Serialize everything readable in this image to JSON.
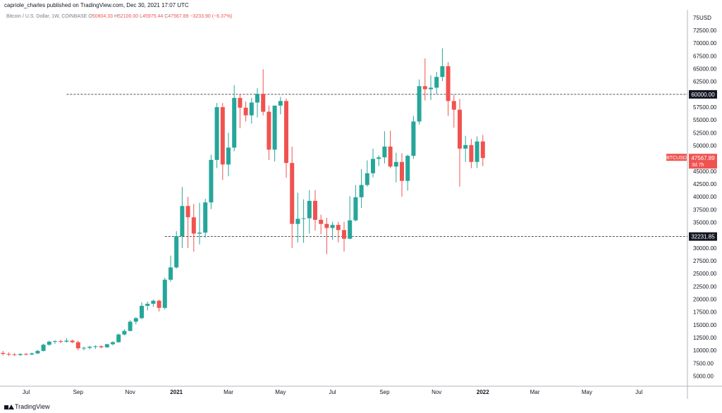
{
  "header": {
    "published": "capriole_charles published on TradingView.com, Dec 30, 2021 17:07 UTC"
  },
  "legend": {
    "symbol": "Bitcoin / U.S. Dollar, 1W, COINBASE",
    "open_label": "O",
    "open": "50804.33",
    "high_label": "H",
    "high": "52100.00",
    "low_label": "L",
    "low": "45975.44",
    "close_label": "C",
    "close": "47567.89",
    "change": "−3233.90 (−6.37%)"
  },
  "footer": {
    "brand": "TradingView"
  },
  "colors": {
    "up": "#26a69a",
    "down": "#ef5350",
    "level": "#131722",
    "axis_text": "#131722",
    "grid_text": "#787b86"
  },
  "chart_data": {
    "type": "candlestick",
    "title": "Bitcoin / U.S. Dollar, 1W, COINBASE",
    "currency_label": "USD",
    "ylim": [
      3000,
      76500
    ],
    "y_ticks": [
      5000,
      7500,
      10000,
      12500,
      15000,
      17500,
      20000,
      22500,
      25000,
      27500,
      30000,
      32500,
      35000,
      37500,
      40000,
      42500,
      45000,
      47500,
      50000,
      52500,
      55000,
      57500,
      60000,
      62500,
      65000,
      67500,
      70000,
      72500
    ],
    "y_tick_labels": [
      "5000.00",
      "7500.00",
      "10000.00",
      "12500.00",
      "15000.00",
      "17500.00",
      "20000.00",
      "22500.00",
      "25000.00",
      "27500.00",
      "30000.00",
      "32500.00",
      "35000.00",
      "37500.00",
      "40000.00",
      "42500.00",
      "45000.00",
      "47500.00",
      "50000.00",
      "52500.00",
      "55000.00",
      "57500.00",
      "60000.00",
      "62500.00",
      "65000.00",
      "67500.00",
      "70000.00",
      "72500.00"
    ],
    "y_top_label": "75",
    "x_labels": [
      {
        "label": "Jul",
        "week": 0,
        "bold": false
      },
      {
        "label": "Sep",
        "week": 9,
        "bold": false
      },
      {
        "label": "Nov",
        "week": 18,
        "bold": false
      },
      {
        "label": "2021",
        "week": 26,
        "bold": true
      },
      {
        "label": "Mar",
        "week": 35,
        "bold": false
      },
      {
        "label": "May",
        "week": 44,
        "bold": false
      },
      {
        "label": "Jul",
        "week": 53,
        "bold": false
      },
      {
        "label": "Sep",
        "week": 62,
        "bold": false
      },
      {
        "label": "Nov",
        "week": 71,
        "bold": false
      },
      {
        "label": "2022",
        "week": 79,
        "bold": true
      },
      {
        "label": "Mar",
        "week": 88,
        "bold": false
      },
      {
        "label": "May",
        "week": 97,
        "bold": false
      },
      {
        "label": "Jul",
        "week": 106,
        "bold": false
      }
    ],
    "first_week": -4,
    "levels": [
      {
        "value": 60000,
        "label": "60000.00",
        "from_week": 11
      },
      {
        "value": 32231.85,
        "label": "32231.85",
        "from_week": 28
      }
    ],
    "last_price": {
      "value": 47567.89,
      "label": "BTCUSD",
      "price": "47567.89",
      "countdown": "3d 7h"
    },
    "candles": [
      {
        "o": 9500,
        "h": 9900,
        "l": 9000,
        "c": 9300
      },
      {
        "o": 9300,
        "h": 9600,
        "l": 8900,
        "c": 9200
      },
      {
        "o": 9200,
        "h": 9450,
        "l": 8950,
        "c": 9100
      },
      {
        "o": 9100,
        "h": 9400,
        "l": 8900,
        "c": 9300
      },
      {
        "o": 9300,
        "h": 9500,
        "l": 9000,
        "c": 9200
      },
      {
        "o": 9200,
        "h": 9600,
        "l": 9050,
        "c": 9400
      },
      {
        "o": 9400,
        "h": 10100,
        "l": 9300,
        "c": 9900
      },
      {
        "o": 9900,
        "h": 11300,
        "l": 9800,
        "c": 11100
      },
      {
        "o": 11100,
        "h": 11900,
        "l": 10900,
        "c": 11700
      },
      {
        "o": 11700,
        "h": 12000,
        "l": 11300,
        "c": 11800
      },
      {
        "o": 11800,
        "h": 12100,
        "l": 11400,
        "c": 11700
      },
      {
        "o": 11700,
        "h": 12400,
        "l": 11500,
        "c": 11900
      },
      {
        "o": 11900,
        "h": 12100,
        "l": 11400,
        "c": 11600
      },
      {
        "o": 11600,
        "h": 11900,
        "l": 10000,
        "c": 10400
      },
      {
        "o": 10400,
        "h": 10700,
        "l": 10000,
        "c": 10500
      },
      {
        "o": 10500,
        "h": 10900,
        "l": 10200,
        "c": 10700
      },
      {
        "o": 10700,
        "h": 11000,
        "l": 10300,
        "c": 10800
      },
      {
        "o": 10800,
        "h": 11000,
        "l": 10400,
        "c": 10600
      },
      {
        "o": 10600,
        "h": 11300,
        "l": 10500,
        "c": 11200
      },
      {
        "o": 11200,
        "h": 11800,
        "l": 11000,
        "c": 11600
      },
      {
        "o": 11600,
        "h": 13300,
        "l": 11500,
        "c": 13100
      },
      {
        "o": 13100,
        "h": 14100,
        "l": 12900,
        "c": 13800
      },
      {
        "o": 13800,
        "h": 15900,
        "l": 13700,
        "c": 15600
      },
      {
        "o": 15600,
        "h": 16500,
        "l": 15100,
        "c": 16300
      },
      {
        "o": 16300,
        "h": 19400,
        "l": 16100,
        "c": 18700
      },
      {
        "o": 18700,
        "h": 19500,
        "l": 17800,
        "c": 19100
      },
      {
        "o": 19100,
        "h": 19900,
        "l": 18500,
        "c": 19700
      },
      {
        "o": 19700,
        "h": 19900,
        "l": 17600,
        "c": 18300
      },
      {
        "o": 18300,
        "h": 24200,
        "l": 18000,
        "c": 23800
      },
      {
        "o": 23800,
        "h": 28500,
        "l": 23400,
        "c": 26200
      },
      {
        "o": 26200,
        "h": 33300,
        "l": 26000,
        "c": 32300
      },
      {
        "o": 32300,
        "h": 41900,
        "l": 30000,
        "c": 38200
      },
      {
        "o": 38200,
        "h": 40000,
        "l": 30000,
        "c": 36000
      },
      {
        "o": 36000,
        "h": 38600,
        "l": 29300,
        "c": 32800
      },
      {
        "o": 32800,
        "h": 38800,
        "l": 30700,
        "c": 33000
      },
      {
        "o": 33000,
        "h": 39600,
        "l": 32000,
        "c": 38900
      },
      {
        "o": 38900,
        "h": 48200,
        "l": 37600,
        "c": 47200
      },
      {
        "o": 47200,
        "h": 58300,
        "l": 45600,
        "c": 57500
      },
      {
        "o": 57500,
        "h": 58300,
        "l": 43300,
        "c": 46300
      },
      {
        "o": 46300,
        "h": 52500,
        "l": 44000,
        "c": 49600
      },
      {
        "o": 49600,
        "h": 61800,
        "l": 48900,
        "c": 59300
      },
      {
        "o": 59300,
        "h": 60100,
        "l": 53400,
        "c": 57400
      },
      {
        "o": 57400,
        "h": 58600,
        "l": 54700,
        "c": 55900
      },
      {
        "o": 55900,
        "h": 59300,
        "l": 54300,
        "c": 58400
      },
      {
        "o": 58400,
        "h": 61200,
        "l": 55500,
        "c": 60100
      },
      {
        "o": 60100,
        "h": 64900,
        "l": 55900,
        "c": 56600
      },
      {
        "o": 56600,
        "h": 57800,
        "l": 47200,
        "c": 49200
      },
      {
        "o": 49200,
        "h": 57200,
        "l": 46900,
        "c": 57800
      },
      {
        "o": 57800,
        "h": 59500,
        "l": 56100,
        "c": 58700
      },
      {
        "o": 58700,
        "h": 59200,
        "l": 43700,
        "c": 46600
      },
      {
        "o": 46600,
        "h": 49800,
        "l": 30000,
        "c": 34700
      },
      {
        "o": 34700,
        "h": 40800,
        "l": 31100,
        "c": 35700
      },
      {
        "o": 35700,
        "h": 39500,
        "l": 31000,
        "c": 35800
      },
      {
        "o": 35800,
        "h": 41300,
        "l": 32800,
        "c": 39200
      },
      {
        "o": 39200,
        "h": 41300,
        "l": 33400,
        "c": 35500
      },
      {
        "o": 35500,
        "h": 36500,
        "l": 32700,
        "c": 34700
      },
      {
        "o": 34700,
        "h": 35900,
        "l": 28800,
        "c": 33900
      },
      {
        "o": 33900,
        "h": 35100,
        "l": 31600,
        "c": 34500
      },
      {
        "o": 34500,
        "h": 35100,
        "l": 31100,
        "c": 33500
      },
      {
        "o": 33500,
        "h": 35100,
        "l": 29300,
        "c": 31800
      },
      {
        "o": 31800,
        "h": 40100,
        "l": 31700,
        "c": 35400
      },
      {
        "o": 35400,
        "h": 42300,
        "l": 35200,
        "c": 39900
      },
      {
        "o": 39900,
        "h": 45400,
        "l": 37800,
        "c": 42300
      },
      {
        "o": 42300,
        "h": 47100,
        "l": 42000,
        "c": 44600
      },
      {
        "o": 44600,
        "h": 49400,
        "l": 43800,
        "c": 47400
      },
      {
        "o": 47400,
        "h": 48100,
        "l": 46000,
        "c": 47700
      },
      {
        "o": 47700,
        "h": 52800,
        "l": 46500,
        "c": 49800
      },
      {
        "o": 49800,
        "h": 52900,
        "l": 45600,
        "c": 45900
      },
      {
        "o": 45900,
        "h": 48600,
        "l": 42800,
        "c": 46800
      },
      {
        "o": 46800,
        "h": 48500,
        "l": 40000,
        "c": 43100
      },
      {
        "o": 43100,
        "h": 48200,
        "l": 41200,
        "c": 48000
      },
      {
        "o": 48000,
        "h": 55800,
        "l": 47400,
        "c": 54700
      },
      {
        "o": 54700,
        "h": 62900,
        "l": 54100,
        "c": 61600
      },
      {
        "o": 61600,
        "h": 67000,
        "l": 58800,
        "c": 61000
      },
      {
        "o": 61000,
        "h": 63700,
        "l": 58900,
        "c": 61300
      },
      {
        "o": 61300,
        "h": 64400,
        "l": 60100,
        "c": 63400
      },
      {
        "o": 63400,
        "h": 69000,
        "l": 62600,
        "c": 65500
      },
      {
        "o": 65500,
        "h": 66300,
        "l": 55800,
        "c": 58700
      },
      {
        "o": 58700,
        "h": 59900,
        "l": 53500,
        "c": 57000
      },
      {
        "o": 57000,
        "h": 59100,
        "l": 42000,
        "c": 49400
      },
      {
        "o": 49400,
        "h": 51900,
        "l": 46800,
        "c": 50100
      },
      {
        "o": 50100,
        "h": 51300,
        "l": 45600,
        "c": 46800
      },
      {
        "o": 46800,
        "h": 51800,
        "l": 45600,
        "c": 50800
      },
      {
        "o": 50800,
        "h": 52100,
        "l": 45975,
        "c": 47568
      }
    ]
  }
}
